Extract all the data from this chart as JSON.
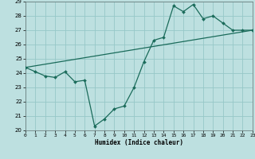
{
  "xlabel": "Humidex (Indice chaleur)",
  "xlim": [
    0,
    23
  ],
  "ylim": [
    20,
    29
  ],
  "xticks": [
    0,
    1,
    2,
    3,
    4,
    5,
    6,
    7,
    8,
    9,
    10,
    11,
    12,
    13,
    14,
    15,
    16,
    17,
    18,
    19,
    20,
    21,
    22,
    23
  ],
  "yticks": [
    20,
    21,
    22,
    23,
    24,
    25,
    26,
    27,
    28,
    29
  ],
  "bg_color": "#bde0e0",
  "line_color": "#1a6b5a",
  "grid_color": "#96c8c8",
  "data_x": [
    0,
    1,
    2,
    3,
    4,
    5,
    6,
    7,
    8,
    9,
    10,
    11,
    12,
    13,
    14,
    15,
    16,
    17,
    18,
    19,
    20,
    21,
    22,
    23
  ],
  "data_y": [
    24.4,
    24.1,
    23.8,
    23.7,
    24.1,
    23.4,
    23.5,
    20.3,
    20.8,
    21.5,
    21.7,
    23.0,
    24.8,
    26.3,
    26.5,
    28.7,
    28.3,
    28.8,
    27.8,
    28.0,
    27.5,
    27.0,
    27.0,
    27.0
  ],
  "trend_x": [
    0,
    23
  ],
  "trend_y": [
    24.4,
    27.0
  ],
  "figsize": [
    3.2,
    2.0
  ],
  "dpi": 100
}
